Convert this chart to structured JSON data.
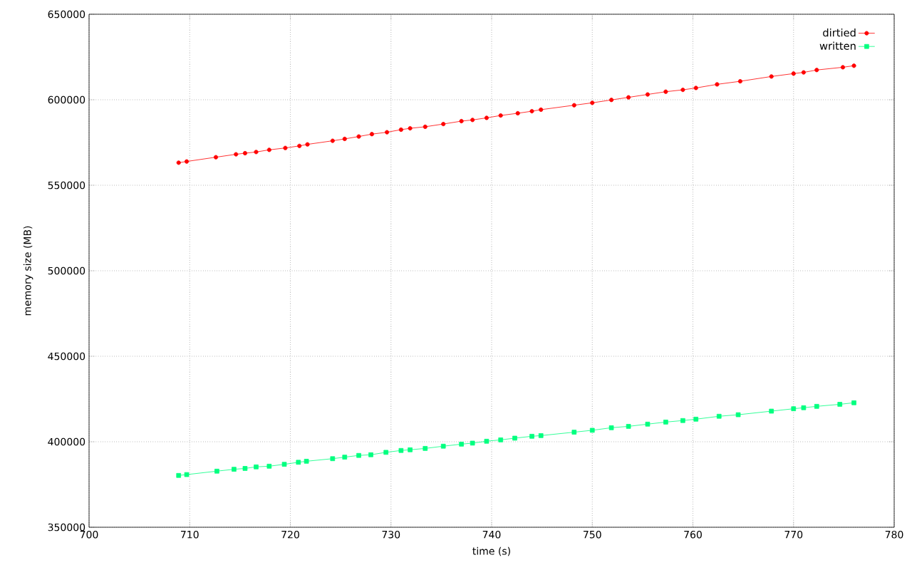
{
  "chart_data": {
    "type": "line",
    "xlabel": "time (s)",
    "ylabel": "memory size (MB)",
    "xlim": [
      700,
      780
    ],
    "ylim": [
      350000,
      650000
    ],
    "xticks": [
      700,
      710,
      720,
      730,
      740,
      750,
      760,
      770,
      780
    ],
    "yticks": [
      350000,
      400000,
      450000,
      500000,
      550000,
      600000,
      650000
    ],
    "grid": true,
    "legend": "top right",
    "line_style": "solid",
    "series": [
      {
        "name": "dirtied",
        "color": "#ff0000",
        "marker": "circle",
        "x": [
          708.9,
          709.7,
          712.6,
          714.6,
          715.5,
          716.6,
          717.9,
          719.5,
          720.9,
          721.7,
          724.2,
          725.4,
          726.8,
          728.1,
          729.6,
          731.0,
          731.9,
          733.4,
          735.2,
          737.0,
          738.1,
          739.5,
          740.9,
          742.6,
          744.0,
          744.9,
          748.2,
          750.0,
          751.9,
          753.6,
          755.5,
          757.3,
          759.0,
          760.3,
          762.4,
          764.7,
          767.8,
          770.0,
          771.0,
          772.3,
          774.9,
          776.0
        ],
        "values": [
          563200,
          563900,
          566400,
          568100,
          568750,
          569450,
          570700,
          571800,
          573000,
          573900,
          576000,
          577100,
          578500,
          579900,
          581000,
          582500,
          583300,
          584200,
          585800,
          587500,
          588200,
          589400,
          590800,
          592100,
          593300,
          594200,
          596800,
          598200,
          599900,
          601400,
          603100,
          604700,
          605800,
          606900,
          609000,
          610800,
          613600,
          615300,
          616000,
          617400,
          619000,
          619900
        ]
      },
      {
        "name": "written",
        "color": "#00ff7f",
        "marker": "square",
        "x": [
          708.9,
          709.7,
          712.7,
          714.4,
          715.5,
          716.6,
          717.9,
          719.4,
          720.8,
          721.6,
          724.2,
          725.4,
          726.8,
          728.0,
          729.5,
          731.0,
          731.9,
          733.4,
          735.2,
          737.0,
          738.1,
          739.5,
          740.9,
          742.3,
          744.0,
          744.9,
          748.2,
          750.0,
          751.9,
          753.6,
          755.5,
          757.3,
          759.0,
          760.3,
          762.6,
          764.5,
          767.8,
          770.0,
          771.0,
          772.3,
          774.6,
          776.0
        ],
        "values": [
          380300,
          380800,
          382800,
          383900,
          384400,
          385300,
          385700,
          386800,
          388000,
          388600,
          390100,
          391000,
          392000,
          392400,
          393800,
          394900,
          395300,
          396100,
          397400,
          398600,
          399200,
          400300,
          401100,
          402100,
          403200,
          403600,
          405600,
          406700,
          408200,
          409000,
          410300,
          411500,
          412400,
          413200,
          414900,
          415800,
          417900,
          419300,
          419900,
          420700,
          421900,
          422800
        ]
      }
    ]
  }
}
